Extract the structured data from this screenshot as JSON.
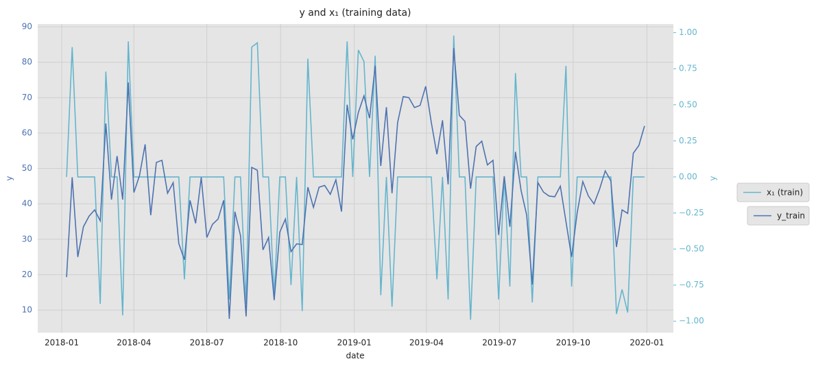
{
  "chart_data": {
    "type": "line",
    "title": "y and x₁ (training data)",
    "x_label": "date",
    "y_label": "y",
    "y2_label": "y",
    "x": [
      "2018-01-07",
      "2018-01-14",
      "2018-01-21",
      "2018-01-28",
      "2018-02-04",
      "2018-02-11",
      "2018-02-18",
      "2018-02-25",
      "2018-03-04",
      "2018-03-11",
      "2018-03-18",
      "2018-03-25",
      "2018-04-01",
      "2018-04-08",
      "2018-04-15",
      "2018-04-22",
      "2018-04-29",
      "2018-05-06",
      "2018-05-13",
      "2018-05-20",
      "2018-05-27",
      "2018-06-03",
      "2018-06-10",
      "2018-06-17",
      "2018-06-24",
      "2018-07-01",
      "2018-07-08",
      "2018-07-15",
      "2018-07-22",
      "2018-07-29",
      "2018-08-05",
      "2018-08-12",
      "2018-08-19",
      "2018-08-26",
      "2018-09-02",
      "2018-09-09",
      "2018-09-16",
      "2018-09-23",
      "2018-09-30",
      "2018-10-07",
      "2018-10-14",
      "2018-10-21",
      "2018-10-28",
      "2018-11-04",
      "2018-11-11",
      "2018-11-18",
      "2018-11-25",
      "2018-12-02",
      "2018-12-09",
      "2018-12-16",
      "2018-12-23",
      "2018-12-30",
      "2019-01-06",
      "2019-01-13",
      "2019-01-20",
      "2019-01-27",
      "2019-02-03",
      "2019-02-10",
      "2019-02-17",
      "2019-02-24",
      "2019-03-03",
      "2019-03-10",
      "2019-03-17",
      "2019-03-24",
      "2019-03-31",
      "2019-04-07",
      "2019-04-14",
      "2019-04-21",
      "2019-04-28",
      "2019-05-05",
      "2019-05-12",
      "2019-05-19",
      "2019-05-26",
      "2019-06-02",
      "2019-06-09",
      "2019-06-16",
      "2019-06-23",
      "2019-06-30",
      "2019-07-07",
      "2019-07-14",
      "2019-07-21",
      "2019-07-28",
      "2019-08-04",
      "2019-08-11",
      "2019-08-18",
      "2019-08-25",
      "2019-09-01",
      "2019-09-08",
      "2019-09-15",
      "2019-09-22",
      "2019-09-29",
      "2019-10-06",
      "2019-10-13",
      "2019-10-20",
      "2019-10-27",
      "2019-11-03",
      "2019-11-10",
      "2019-11-17",
      "2019-11-24",
      "2019-12-01",
      "2019-12-08",
      "2019-12-15",
      "2019-12-22",
      "2019-12-29"
    ],
    "series": [
      {
        "name": "x₁ (train)",
        "color": "#64b5cd",
        "axis": "y2",
        "values": [
          0,
          0.9,
          0,
          0,
          0,
          0,
          -0.88,
          0.73,
          0,
          0,
          -0.96,
          0.94,
          0,
          0,
          0,
          0,
          0,
          0,
          0,
          0,
          0,
          -0.71,
          0,
          0,
          0,
          0,
          0,
          0,
          0,
          -0.85,
          0,
          0,
          -0.88,
          0.9,
          0.93,
          0,
          0,
          -0.83,
          0,
          0,
          -0.75,
          0,
          -0.93,
          0.82,
          0,
          0,
          0,
          0,
          0,
          0,
          0.94,
          0,
          0.88,
          0.8,
          0,
          0.84,
          -0.82,
          0,
          -0.9,
          0,
          0,
          0,
          0,
          0,
          0,
          0,
          -0.71,
          0,
          -0.85,
          0.98,
          0,
          0,
          -0.99,
          0,
          0,
          0,
          0,
          -0.85,
          0,
          -0.76,
          0.72,
          0,
          0,
          -0.87,
          0,
          0,
          0,
          0,
          0,
          0.77,
          -0.76,
          0,
          0,
          0,
          0,
          0,
          0,
          0,
          -0.95,
          -0.78,
          -0.94,
          0,
          0,
          0
        ]
      },
      {
        "name": "y_train",
        "color": "#4c72b0",
        "values": [
          19.3,
          47.5,
          25,
          33.5,
          36.5,
          38.3,
          35.2,
          62.7,
          41.2,
          53.5,
          41.2,
          74.3,
          43.2,
          48,
          56.8,
          36.8,
          51.7,
          52.3,
          43,
          46,
          28.8,
          24.2,
          41,
          34.5,
          47.5,
          30.5,
          34.2,
          35.7,
          41,
          7.5,
          37.8,
          31,
          8.2,
          50.3,
          49.5,
          27,
          30.5,
          12.8,
          32,
          35.7,
          26.5,
          28.7,
          28.5,
          44.7,
          39,
          44.7,
          45.2,
          42.7,
          46.8,
          37.8,
          68,
          58.2,
          65.8,
          70.5,
          64.2,
          79,
          50.7,
          67.3,
          43,
          63,
          70.3,
          70,
          67.2,
          67.8,
          73.2,
          63,
          54,
          63.6,
          45.5,
          84,
          65,
          63.3,
          44.3,
          56.2,
          57.7,
          51,
          52.3,
          31.2,
          47.8,
          33.5,
          54.7,
          43.8,
          36.8,
          17.2,
          46,
          43.3,
          42.2,
          42,
          45,
          35,
          25,
          37.5,
          46.3,
          42.2,
          40,
          44.2,
          49.3,
          46.5,
          27.8,
          38.3,
          37.3,
          54.3,
          56.5,
          62
        ]
      }
    ],
    "xlim": [
      "2017-12-02",
      "2020-02-03"
    ],
    "xticks": [
      "2018-01",
      "2018-04",
      "2018-07",
      "2018-10",
      "2019-01",
      "2019-04",
      "2019-07",
      "2019-10",
      "2020-01"
    ],
    "ylim": [
      3.6,
      90.8
    ],
    "yticks": [
      10,
      20,
      30,
      40,
      50,
      60,
      70,
      80,
      90
    ],
    "y2lim": [
      -1.08,
      1.06
    ],
    "y2ticks": [
      {
        "value": -1,
        "label": "−1.00"
      },
      {
        "value": -0.75,
        "label": "−0.75"
      },
      {
        "value": -0.5,
        "label": "−0.50"
      },
      {
        "value": -0.25,
        "label": "−0.25"
      },
      {
        "value": 0,
        "label": "0.00"
      },
      {
        "value": 0.25,
        "label": "0.25"
      },
      {
        "value": 0.5,
        "label": "0.50"
      },
      {
        "value": 0.75,
        "label": "0.75"
      },
      {
        "value": 1,
        "label": "1.00"
      }
    ],
    "grid": true,
    "legend": "outside right"
  }
}
